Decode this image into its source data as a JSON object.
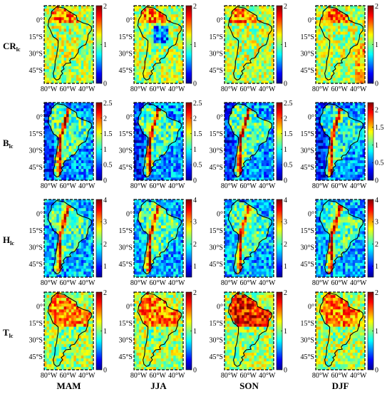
{
  "chart_data": {
    "type": "heatmap",
    "columns": [
      "MAM",
      "JJA",
      "SON",
      "DJF"
    ],
    "rows": [
      {
        "label": "CR",
        "subscript": "lc",
        "colorbars": [
          {
            "min": 0,
            "max": 2,
            "ticks": [
              "2",
              "1",
              "0"
            ]
          },
          {
            "min": 0,
            "max": 2,
            "ticks": [
              "2",
              "1",
              "0"
            ]
          },
          {
            "min": 0,
            "max": 2,
            "ticks": [
              "2",
              "1",
              "0"
            ]
          },
          {
            "min": 0,
            "max": 2,
            "ticks": [
              "2",
              "1",
              "0"
            ]
          }
        ]
      },
      {
        "label": "B",
        "subscript": "lc",
        "colorbars": [
          {
            "min": 0,
            "max": 2.5,
            "ticks": [
              "2.5",
              "2",
              "1.5",
              "1",
              "0.5",
              "0"
            ]
          },
          {
            "min": 0,
            "max": 2.5,
            "ticks": [
              "2.5",
              "2",
              "1.5",
              "1",
              "0.5",
              "0"
            ]
          },
          {
            "min": 0,
            "max": 2.5,
            "ticks": [
              "2.5",
              "2",
              "1.5",
              "1",
              "0.5",
              "0"
            ]
          },
          {
            "min": 0,
            "max": 2.2,
            "ticks": [
              "2",
              "1.5",
              "1",
              "0.5",
              "0"
            ]
          }
        ]
      },
      {
        "label": "H",
        "subscript": "lc",
        "colorbars": [
          {
            "min": 0.5,
            "max": 4,
            "ticks": [
              "4",
              "3",
              "2",
              "1"
            ]
          },
          {
            "min": 0.5,
            "max": 4,
            "ticks": [
              "4",
              "3",
              "2",
              "1"
            ]
          },
          {
            "min": 0.5,
            "max": 4,
            "ticks": [
              "4",
              "3",
              "2",
              "1"
            ]
          },
          {
            "min": 0.5,
            "max": 4,
            "ticks": [
              "4",
              "3",
              "2",
              "1"
            ]
          }
        ]
      },
      {
        "label": "T",
        "subscript": "lc",
        "colorbars": [
          {
            "min": 0,
            "max": 2,
            "ticks": [
              "2",
              "1",
              "0"
            ]
          },
          {
            "min": 0,
            "max": 2,
            "ticks": [
              "2",
              "1",
              "0"
            ]
          },
          {
            "min": 0,
            "max": 2,
            "ticks": [
              "2",
              "1",
              "0"
            ]
          },
          {
            "min": 0,
            "max": 2,
            "ticks": [
              "2",
              "1",
              "0"
            ]
          }
        ]
      }
    ],
    "lat_ticks": [
      "0°",
      "15°S",
      "30°S",
      "45°S"
    ],
    "lon_ticks": [
      "80°W",
      "60°W",
      "40°W"
    ],
    "lat_range": [
      -57,
      13
    ],
    "lon_range": [
      -85,
      -33
    ],
    "colormap": "jet"
  }
}
